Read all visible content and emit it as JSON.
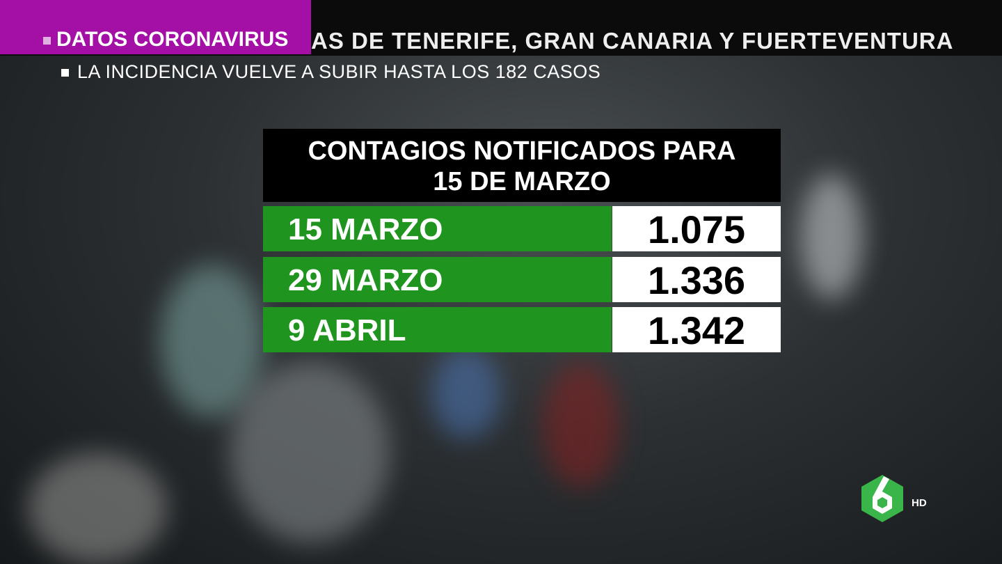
{
  "header": {
    "tag": "DATOS CORONAVIRUS",
    "ticker": "AS DE TENERIFE, GRAN CANARIA Y FUERTEVENTURA",
    "subline": "LA INCIDENCIA VUELVE A SUBIR HASTA LOS 182 CASOS"
  },
  "table": {
    "title": "CONTAGIOS NOTIFICADOS PARA 15 DE MARZO",
    "rows": [
      [
        "15 MARZO",
        "1.075"
      ],
      [
        "29 MARZO",
        "1.336"
      ],
      [
        "9 ABRIL",
        "1.342"
      ]
    ]
  },
  "logo": {
    "badge": "HD"
  }
}
